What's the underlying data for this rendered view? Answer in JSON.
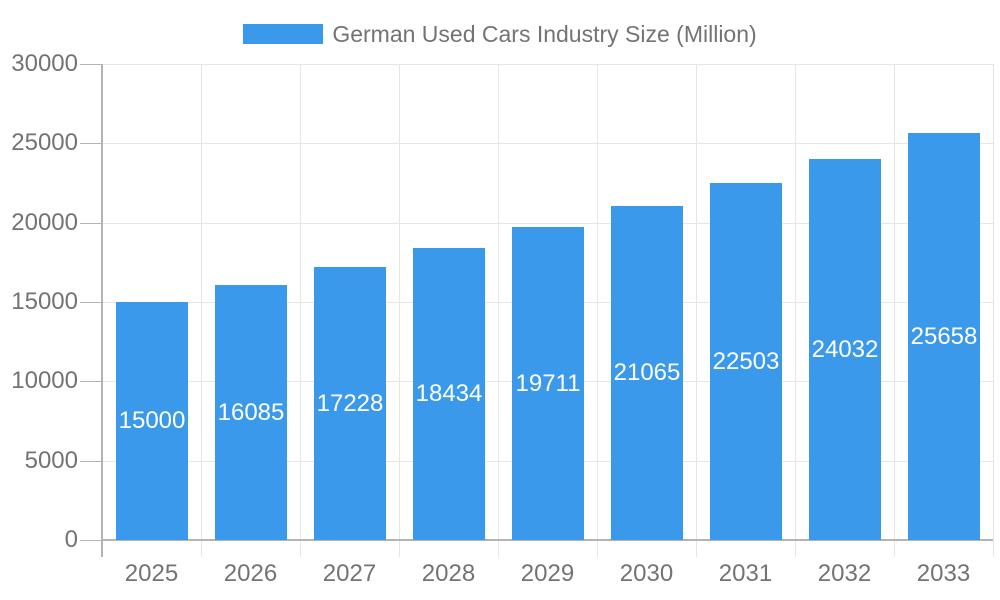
{
  "legend": {
    "label": "German Used Cars Industry Size (Million)",
    "position": "top"
  },
  "colors": {
    "bar": "#3b99ec",
    "grid": "#e6e6e6",
    "axis": "#b3b3b3",
    "text": "#737373",
    "bar_label": "#ffffff",
    "background": "#ffffff"
  },
  "chart_data": {
    "type": "bar",
    "title": "German Used Cars Industry Size (Million)",
    "series": [
      {
        "name": "German Used Cars Industry Size (Million)",
        "values": [
          15000,
          16085,
          17228,
          18434,
          19711,
          21065,
          22503,
          24032,
          25658
        ]
      }
    ],
    "categories": [
      "2025",
      "2026",
      "2027",
      "2028",
      "2029",
      "2030",
      "2031",
      "2032",
      "2033"
    ],
    "values": [
      15000,
      16085,
      17228,
      18434,
      19711,
      21065,
      22503,
      24032,
      25658
    ],
    "value_labels": [
      "15000",
      "16085",
      "17228",
      "18434",
      "19711",
      "21065",
      "22503",
      "24032",
      "25658"
    ],
    "yticks": [
      0,
      5000,
      10000,
      15000,
      20000,
      25000,
      30000
    ],
    "ytick_labels": [
      "0",
      "5000",
      "10000",
      "15000",
      "20000",
      "25000",
      "30000"
    ],
    "ylim": [
      0,
      30000
    ],
    "xlabel": "",
    "ylabel": "",
    "grid": true,
    "legend_position": "top",
    "value_label_position": "inside-center"
  }
}
